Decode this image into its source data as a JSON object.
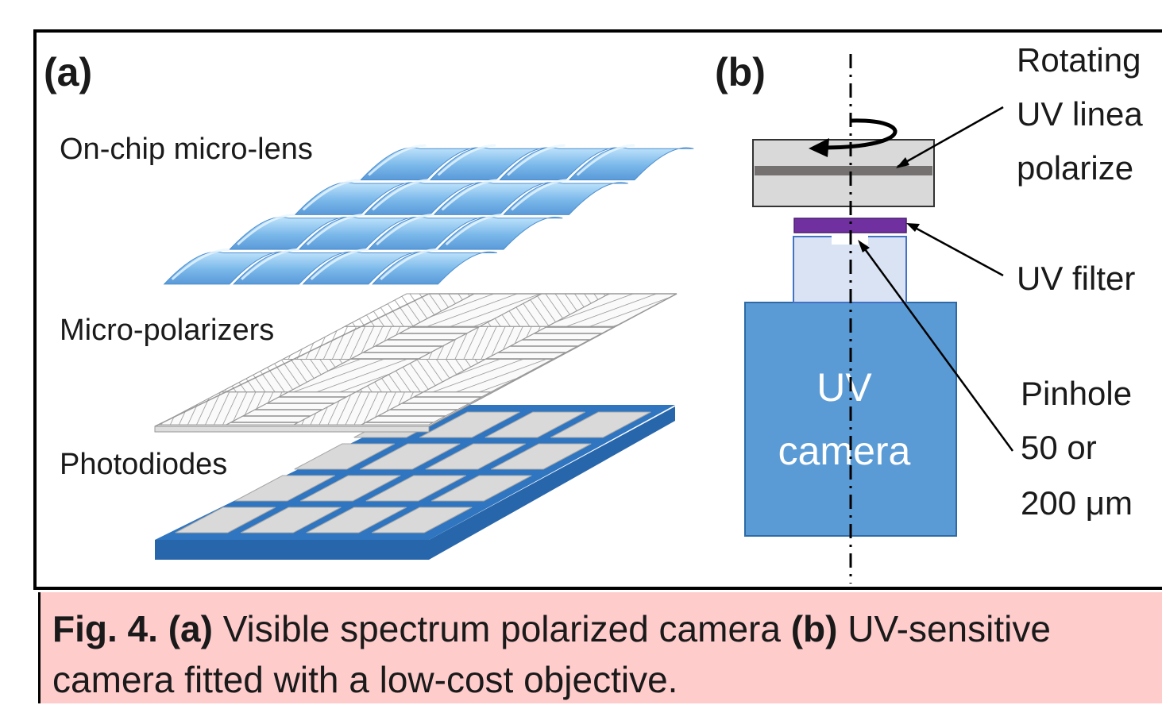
{
  "panel_a": {
    "label": "(a)",
    "layers": {
      "lens": "On-chip micro-lens",
      "polarizers": "Micro-polarizers",
      "photodiodes": "Photodiodes"
    }
  },
  "panel_b": {
    "label": "(b)",
    "polarizer_lines": [
      "Rotating",
      "UV linea",
      "polarize"
    ],
    "filter": "UV filter",
    "pinhole_lines": [
      "Pinhole",
      "50 or",
      "200 μm"
    ],
    "camera_lines": [
      "UV",
      "camera"
    ]
  },
  "caption": {
    "fig": "Fig. 4.",
    "a": "(a)",
    "text1": " Visible spectrum polarized camera ",
    "b": "(b)",
    "text2": " UV-sensitive camera fitted with a low-cost objective."
  },
  "colors": {
    "lens": "#7ab8ea",
    "photodiode_base": "#2f75c0",
    "camera": "#5b9bd5",
    "objective": "#dae3f3",
    "filter": "#7030a0",
    "polarizer_housing": "#d9d9d9",
    "polarizer_strip": "#767171",
    "caption_bg": "#ffcccc"
  }
}
